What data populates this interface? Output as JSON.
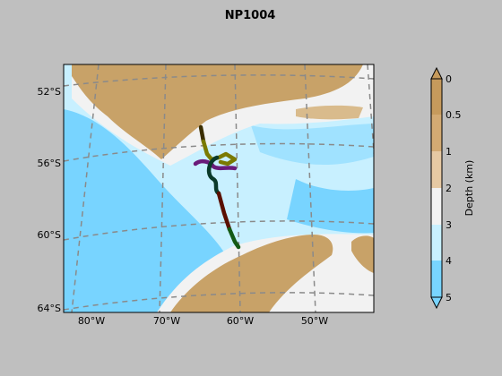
{
  "title": "NP1004",
  "map": {
    "lat_labels": [
      "52°S",
      "56°S",
      "60°S",
      "64°S"
    ],
    "lon_labels": [
      "80°W",
      "70°W",
      "60°W",
      "50°W"
    ],
    "graticule": "dashed grey",
    "track_colors": [
      "#3a2e00",
      "#7a7a00",
      "#6a1b7a",
      "#0a3a2a",
      "#5a1000",
      "#145a14"
    ],
    "land_color": "#c8a268",
    "shallow_color": "#f0f0f0",
    "deep_color": "#78d4ff"
  },
  "colorbar": {
    "label": "Depth (km)",
    "ticks": [
      "0",
      "0.5",
      "1",
      "2",
      "3",
      "4",
      "5"
    ],
    "colors": [
      "#c69a5c",
      "#d3aa73",
      "#e6c9a3",
      "#f2f2f2",
      "#c8f0ff",
      "#a0e2ff",
      "#78d4ff"
    ]
  }
}
